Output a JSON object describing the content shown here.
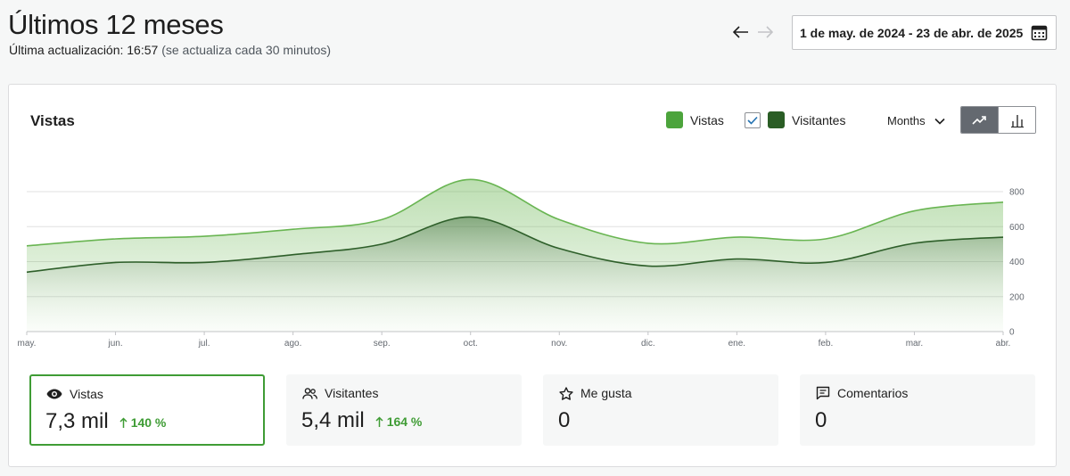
{
  "header": {
    "title": "Últimos 12 meses",
    "update_label": "Última actualización: 16:57",
    "update_note": "(se actualiza cada 30 minutos)",
    "date_range": "1 de may. de 2024 - 23 de abr. de 2025"
  },
  "chart_panel": {
    "title": "Vistas",
    "legend": [
      {
        "label": "Vistas",
        "color": "#4ca43c"
      },
      {
        "label": "Visitantes",
        "color": "#2a5d25",
        "checked": true
      }
    ],
    "period": "Months",
    "chart_toggle": {
      "selected": "line"
    }
  },
  "colors": {
    "vistas": "#69b552",
    "visitantes": "#2e5f2a",
    "accent": "#3f9c35"
  },
  "chart_data": {
    "type": "area",
    "x": [
      "may.",
      "jun.",
      "jul.",
      "ago.",
      "sep.",
      "oct.",
      "nov.",
      "dic.",
      "ene.",
      "feb.",
      "mar.",
      "abr."
    ],
    "series": [
      {
        "name": "Vistas",
        "values": [
          490,
          530,
          545,
          585,
          640,
          870,
          640,
          505,
          540,
          530,
          690,
          740
        ]
      },
      {
        "name": "Visitantes",
        "values": [
          340,
          395,
          395,
          440,
          500,
          655,
          475,
          375,
          415,
          395,
          505,
          540
        ]
      }
    ],
    "yticks": [
      0,
      200,
      400,
      600,
      800
    ],
    "ylim": [
      0,
      800
    ],
    "grid": true
  },
  "stats": [
    {
      "icon": "eye-icon",
      "label": "Vistas",
      "value": "7,3 mil",
      "delta": "140 %",
      "selected": true
    },
    {
      "icon": "people-icon",
      "label": "Visitantes",
      "value": "5,4 mil",
      "delta": "164 %",
      "selected": false
    },
    {
      "icon": "star-icon",
      "label": "Me gusta",
      "value": "0",
      "delta": "",
      "selected": false
    },
    {
      "icon": "comment-icon",
      "label": "Comentarios",
      "value": "0",
      "delta": "",
      "selected": false
    }
  ]
}
